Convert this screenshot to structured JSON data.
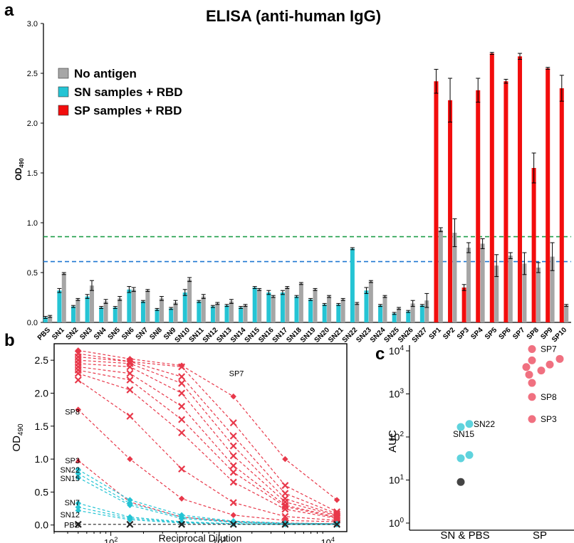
{
  "panels": {
    "a": {
      "letter": "a",
      "title": "ELISA (anti-human IgG)",
      "ylabel": "OD",
      "ylabel_sub": "490",
      "yticks": [
        "0.0",
        "0.5",
        "1.0",
        "1.5",
        "2.0",
        "2.5",
        "3.0"
      ],
      "legend": [
        {
          "label": "No antigen",
          "color": "#a6a6a6"
        },
        {
          "label": "SN samples + RBD",
          "color": "#25c4d4"
        },
        {
          "label": "SP samples + RBD",
          "color": "#f20d0d"
        }
      ],
      "thresholds": [
        {
          "value": 0.86,
          "color": "#1e9e48"
        },
        {
          "value": 0.61,
          "color": "#1f78d1"
        }
      ]
    },
    "b": {
      "letter": "b",
      "xlabel": "Reciprocal Dilution",
      "ylabel": "OD",
      "ylabel_sub": "490",
      "yticks": [
        "0.0",
        "0.5",
        "1.0",
        "1.5",
        "2.0",
        "2.5"
      ],
      "xtick_base": "10",
      "xtick_exps": [
        "2",
        "3",
        "4"
      ],
      "labels": [
        {
          "text": "SP7",
          "x": 1440,
          "y": 2.3
        },
        {
          "text": "SP8",
          "x": 22,
          "y": 1.72
        },
        {
          "text": "SP3",
          "x": 22,
          "y": 0.98
        },
        {
          "text": "SN22",
          "x": 22,
          "y": 0.84
        },
        {
          "text": "SN15",
          "x": 22,
          "y": 0.71
        },
        {
          "text": "SN7",
          "x": 22,
          "y": 0.34
        },
        {
          "text": "SN12",
          "x": 22,
          "y": 0.16
        },
        {
          "text": "PBS",
          "x": 22,
          "y": 0.0
        }
      ]
    },
    "c": {
      "letter": "c",
      "ylabel": "AUC",
      "ytick_base": "10",
      "ytick_exps": [
        "0",
        "1",
        "2",
        "3",
        "4"
      ],
      "categories": [
        "SN & PBS",
        "SP"
      ],
      "labels": [
        {
          "text": "SP7",
          "cat": "SP",
          "value": 11000
        },
        {
          "text": "SP8",
          "cat": "SP",
          "value": 850
        },
        {
          "text": "SP3",
          "cat": "SP",
          "value": 260
        },
        {
          "text": "SN22",
          "cat": "SN",
          "value": 200
        },
        {
          "text": "SN15",
          "cat": "SN",
          "value": 100
        }
      ]
    }
  },
  "chart_data": [
    {
      "type": "bar",
      "title": "ELISA (anti-human IgG)",
      "ylabel": "OD490",
      "ylim": [
        0,
        3.0
      ],
      "categories": [
        "PBS",
        "SN1",
        "SN2",
        "SN3",
        "SN4",
        "SN5",
        "SN6",
        "SN7",
        "SN8",
        "SN9",
        "SN10",
        "SN11",
        "SN12",
        "SN13",
        "SN14",
        "SN15",
        "SN16",
        "SN17",
        "SN18",
        "SN19",
        "SN20",
        "SN21",
        "SN22",
        "SN23",
        "SN24",
        "SN25",
        "SN26",
        "SN27",
        "SP1",
        "SP2",
        "SP3",
        "SP4",
        "SP5",
        "SP6",
        "SP7",
        "SP8",
        "SP9",
        "SP10"
      ],
      "series": [
        {
          "name": "SN samples + RBD",
          "color": "#25c4d4",
          "type": "bar",
          "values": [
            0.05,
            0.32,
            0.16,
            0.26,
            0.15,
            0.15,
            0.33,
            0.21,
            0.13,
            0.14,
            0.3,
            0.21,
            0.16,
            0.17,
            0.15,
            0.35,
            0.3,
            0.3,
            0.26,
            0.23,
            0.18,
            0.18,
            0.74,
            0.32,
            0.17,
            0.09,
            0.11,
            0.17,
            null,
            null,
            null,
            null,
            null,
            null,
            null,
            null,
            null,
            null
          ],
          "errors": [
            0.01,
            0.02,
            0.01,
            0.02,
            0.01,
            0.01,
            0.03,
            0.01,
            0.01,
            0.01,
            0.03,
            0.01,
            0.01,
            0.01,
            0.01,
            0.01,
            0.02,
            0.02,
            0.01,
            0.01,
            0.01,
            0.01,
            0.01,
            0.03,
            0.01,
            0.01,
            0.01,
            0.01,
            null,
            null,
            null,
            null,
            null,
            null,
            null,
            null,
            null,
            null
          ]
        },
        {
          "name": "SP samples + RBD",
          "color": "#f20d0d",
          "type": "bar",
          "values": [
            null,
            null,
            null,
            null,
            null,
            null,
            null,
            null,
            null,
            null,
            null,
            null,
            null,
            null,
            null,
            null,
            null,
            null,
            null,
            null,
            null,
            null,
            null,
            null,
            null,
            null,
            null,
            null,
            2.42,
            2.23,
            0.35,
            2.33,
            2.7,
            2.42,
            2.67,
            1.55,
            2.55,
            2.35
          ],
          "errors": [
            null,
            null,
            null,
            null,
            null,
            null,
            null,
            null,
            null,
            null,
            null,
            null,
            null,
            null,
            null,
            null,
            null,
            null,
            null,
            null,
            null,
            null,
            null,
            null,
            null,
            null,
            null,
            null,
            0.12,
            0.22,
            0.03,
            0.12,
            0.01,
            0.02,
            0.03,
            0.15,
            0.01,
            0.13
          ]
        },
        {
          "name": "No antigen",
          "color": "#a6a6a6",
          "type": "bar",
          "values": [
            0.06,
            0.49,
            0.23,
            0.37,
            0.21,
            0.24,
            0.33,
            0.32,
            0.24,
            0.2,
            0.43,
            0.26,
            0.19,
            0.21,
            0.17,
            0.33,
            0.26,
            0.35,
            0.39,
            0.33,
            0.26,
            0.23,
            0.19,
            0.41,
            0.26,
            0.14,
            0.19,
            0.22,
            0.93,
            0.9,
            0.75,
            0.79,
            0.57,
            0.67,
            0.59,
            0.55,
            0.66,
            0.17
          ],
          "errors": [
            0.01,
            0.01,
            0.01,
            0.05,
            0.02,
            0.02,
            0.02,
            0.01,
            0.02,
            0.02,
            0.02,
            0.02,
            0.01,
            0.02,
            0.01,
            0.01,
            0.01,
            0.01,
            0.01,
            0.01,
            0.01,
            0.01,
            0.01,
            0.01,
            0.01,
            0.01,
            0.03,
            0.07,
            0.02,
            0.14,
            0.05,
            0.05,
            0.11,
            0.03,
            0.11,
            0.05,
            0.14,
            0.01
          ]
        }
      ],
      "thresholds": [
        0.86,
        0.61
      ]
    },
    {
      "type": "line",
      "xlabel": "Reciprocal Dilution",
      "ylabel": "OD490",
      "x_scale": "log",
      "xlim": [
        30,
        15000
      ],
      "ylim": [
        -0.1,
        2.75
      ],
      "x": [
        50,
        150,
        450,
        1350,
        4050,
        12150
      ],
      "series": [
        {
          "color": "#e8384a",
          "values": [
            2.65,
            2.52,
            2.42,
            1.95,
            1.0,
            0.38
          ]
        },
        {
          "color": "#e8384a",
          "values": [
            2.6,
            2.48,
            2.4,
            1.55,
            0.6,
            0.2
          ]
        },
        {
          "color": "#e8384a",
          "values": [
            2.55,
            2.48,
            2.25,
            1.35,
            0.48,
            0.17
          ]
        },
        {
          "color": "#e8384a",
          "values": [
            2.5,
            2.45,
            2.15,
            1.2,
            0.4,
            0.15
          ]
        },
        {
          "color": "#e8384a",
          "values": [
            2.45,
            2.4,
            2.0,
            1.05,
            0.35,
            0.14
          ]
        },
        {
          "color": "#e8384a",
          "values": [
            2.4,
            2.3,
            1.8,
            0.9,
            0.3,
            0.12
          ]
        },
        {
          "color": "#e8384a",
          "values": [
            2.35,
            2.2,
            1.6,
            0.8,
            0.28,
            0.11
          ]
        },
        {
          "color": "#e8384a",
          "values": [
            2.3,
            2.05,
            1.4,
            0.65,
            0.24,
            0.1
          ]
        },
        {
          "color": "#e8384a",
          "values": [
            2.2,
            1.65,
            0.85,
            0.34,
            0.13,
            0.07
          ]
        },
        {
          "color": "#e8384a",
          "values": [
            1.75,
            1.0,
            0.4,
            0.15,
            0.07,
            0.05
          ]
        },
        {
          "color": "#e8384a",
          "values": [
            0.98,
            0.35,
            0.12,
            0.05,
            0.03,
            0.02
          ]
        },
        {
          "color": "#25c4d4",
          "values": [
            0.84,
            0.38,
            0.15,
            0.06,
            0.03,
            0.02
          ]
        },
        {
          "color": "#25c4d4",
          "values": [
            0.78,
            0.33,
            0.12,
            0.05,
            0.02,
            0.02
          ]
        },
        {
          "color": "#25c4d4",
          "values": [
            0.72,
            0.3,
            0.1,
            0.04,
            0.02,
            0.01
          ]
        },
        {
          "color": "#25c4d4",
          "values": [
            0.33,
            0.12,
            0.05,
            0.02,
            0.01,
            0.01
          ]
        },
        {
          "color": "#25c4d4",
          "values": [
            0.27,
            0.1,
            0.04,
            0.02,
            0.01,
            0.01
          ]
        },
        {
          "color": "#25c4d4",
          "values": [
            0.22,
            0.08,
            0.03,
            0.02,
            0.01,
            0.01
          ]
        },
        {
          "color": "#222222",
          "values": [
            0.01,
            0.01,
            0.01,
            0.01,
            0.01,
            0.01
          ]
        }
      ]
    },
    {
      "type": "scatter",
      "ylabel": "AUC",
      "y_scale": "log",
      "ylim": [
        1,
        10000
      ],
      "categories": [
        "SN & PBS",
        "SP"
      ],
      "series": [
        {
          "category": "SN & PBS",
          "color": "#5fd3dd",
          "points": [
            {
              "offset": -0.3,
              "value": 170
            },
            {
              "offset": 0.3,
              "value": 200
            },
            {
              "offset": -0.3,
              "value": 32
            },
            {
              "offset": 0.3,
              "value": 38
            }
          ]
        },
        {
          "category": "SN & PBS",
          "color": "#444444",
          "points": [
            {
              "offset": -0.3,
              "value": 9
            }
          ]
        },
        {
          "category": "SP",
          "color": "#f07080",
          "points": [
            {
              "offset": -0.55,
              "value": 11000
            },
            {
              "offset": -0.55,
              "value": 6000
            },
            {
              "offset": -0.95,
              "value": 4200
            },
            {
              "offset": -0.75,
              "value": 2800
            },
            {
              "offset": -0.55,
              "value": 1800
            },
            {
              "offset": 0.1,
              "value": 3500
            },
            {
              "offset": 0.7,
              "value": 4800
            },
            {
              "offset": 1.4,
              "value": 6500
            },
            {
              "offset": -0.55,
              "value": 850
            },
            {
              "offset": -0.55,
              "value": 260
            }
          ]
        }
      ]
    }
  ]
}
